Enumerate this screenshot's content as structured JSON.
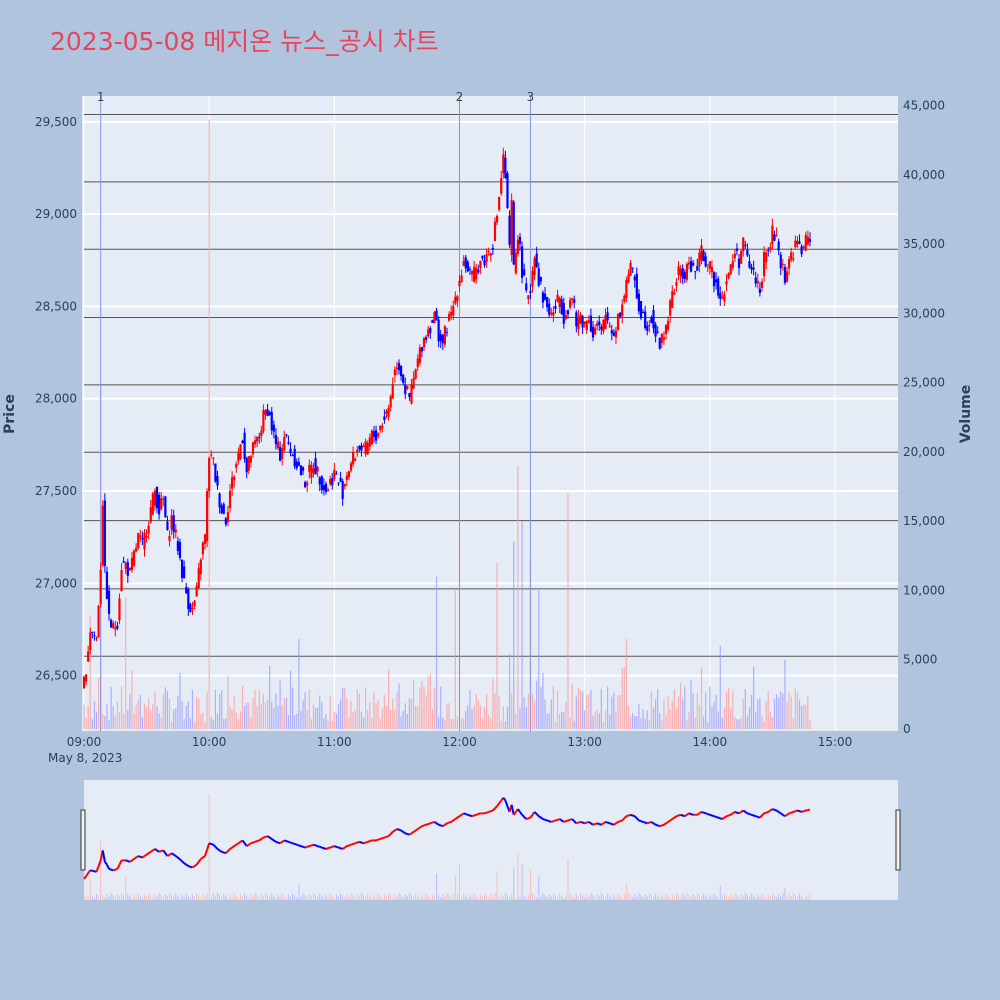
{
  "title": "2023-05-08 메지온 뉴스_공시 차트",
  "colors": {
    "background": "#b0c4de",
    "plot_bg": "#e5ecf6",
    "up": "#ff0000",
    "down": "#0000ff",
    "marker_line": "#8294e0",
    "hline": "#555555"
  },
  "chart_data": {
    "type": "candlestick",
    "date_label": "May 8, 2023",
    "ylabel": "Price",
    "y2label": "Volume",
    "ylim": [
      26200,
      29640
    ],
    "y2lim": [
      0,
      45700
    ],
    "xlim": [
      "09:00",
      "15:30"
    ],
    "y_ticks": [
      "26,500",
      "27,000",
      "27,500",
      "28,000",
      "28,500",
      "29,000",
      "29,500"
    ],
    "y_tick_values": [
      26500,
      27000,
      27500,
      28000,
      28500,
      29000,
      29500
    ],
    "y2_ticks": [
      "0",
      "5,000",
      "10,000",
      "15,000",
      "20,000",
      "25,000",
      "30,000",
      "35,000",
      "40,000",
      "45,000"
    ],
    "y2_tick_values": [
      0,
      5000,
      10000,
      15000,
      20000,
      25000,
      30000,
      35000,
      40000,
      45000
    ],
    "x_ticks": [
      "09:00",
      "10:00",
      "11:00",
      "12:00",
      "13:00",
      "14:00",
      "15:00"
    ],
    "x_tick_minutes": [
      0,
      60,
      120,
      180,
      240,
      300,
      360
    ],
    "event_markers": [
      {
        "label": "1",
        "minute": 8
      },
      {
        "label": "2",
        "minute": 180
      },
      {
        "label": "3",
        "minute": 214
      }
    ],
    "horizontal_levels": [
      29540,
      29175,
      28810,
      28440,
      28075,
      27710,
      27340,
      26970,
      26605
    ],
    "price_path": [
      [
        0,
        26450
      ],
      [
        3,
        26750
      ],
      [
        6,
        26700
      ],
      [
        8,
        27100
      ],
      [
        9,
        27450
      ],
      [
        10,
        27050
      ],
      [
        11,
        26950
      ],
      [
        12,
        26800
      ],
      [
        14,
        26750
      ],
      [
        16,
        26800
      ],
      [
        18,
        27100
      ],
      [
        20,
        27100
      ],
      [
        22,
        27050
      ],
      [
        24,
        27150
      ],
      [
        26,
        27250
      ],
      [
        28,
        27200
      ],
      [
        30,
        27300
      ],
      [
        32,
        27400
      ],
      [
        34,
        27500
      ],
      [
        36,
        27400
      ],
      [
        38,
        27450
      ],
      [
        40,
        27250
      ],
      [
        42,
        27350
      ],
      [
        45,
        27200
      ],
      [
        48,
        27000
      ],
      [
        50,
        26900
      ],
      [
        52,
        26850
      ],
      [
        54,
        26950
      ],
      [
        56,
        27150
      ],
      [
        58,
        27250
      ],
      [
        60,
        27700
      ],
      [
        62,
        27650
      ],
      [
        64,
        27500
      ],
      [
        66,
        27400
      ],
      [
        68,
        27350
      ],
      [
        70,
        27500
      ],
      [
        72,
        27600
      ],
      [
        74,
        27700
      ],
      [
        76,
        27800
      ],
      [
        78,
        27600
      ],
      [
        80,
        27700
      ],
      [
        82,
        27750
      ],
      [
        84,
        27800
      ],
      [
        86,
        27900
      ],
      [
        88,
        27950
      ],
      [
        90,
        27850
      ],
      [
        92,
        27750
      ],
      [
        94,
        27700
      ],
      [
        96,
        27800
      ],
      [
        98,
        27750
      ],
      [
        100,
        27700
      ],
      [
        102,
        27650
      ],
      [
        104,
        27600
      ],
      [
        106,
        27550
      ],
      [
        108,
        27600
      ],
      [
        110,
        27650
      ],
      [
        112,
        27600
      ],
      [
        114,
        27550
      ],
      [
        116,
        27500
      ],
      [
        118,
        27550
      ],
      [
        120,
        27600
      ],
      [
        122,
        27550
      ],
      [
        124,
        27500
      ],
      [
        126,
        27600
      ],
      [
        128,
        27650
      ],
      [
        130,
        27700
      ],
      [
        132,
        27750
      ],
      [
        134,
        27700
      ],
      [
        136,
        27750
      ],
      [
        138,
        27800
      ],
      [
        140,
        27800
      ],
      [
        142,
        27850
      ],
      [
        144,
        27900
      ],
      [
        146,
        27950
      ],
      [
        148,
        28100
      ],
      [
        150,
        28200
      ],
      [
        152,
        28150
      ],
      [
        154,
        28050
      ],
      [
        156,
        28000
      ],
      [
        158,
        28100
      ],
      [
        160,
        28200
      ],
      [
        162,
        28300
      ],
      [
        164,
        28350
      ],
      [
        166,
        28400
      ],
      [
        168,
        28450
      ],
      [
        170,
        28350
      ],
      [
        172,
        28300
      ],
      [
        174,
        28400
      ],
      [
        176,
        28450
      ],
      [
        178,
        28550
      ],
      [
        180,
        28650
      ],
      [
        182,
        28750
      ],
      [
        184,
        28700
      ],
      [
        186,
        28650
      ],
      [
        188,
        28700
      ],
      [
        190,
        28750
      ],
      [
        192,
        28750
      ],
      [
        194,
        28800
      ],
      [
        196,
        28850
      ],
      [
        198,
        29000
      ],
      [
        200,
        29200
      ],
      [
        201,
        29300
      ],
      [
        202,
        29200
      ],
      [
        204,
        28800
      ],
      [
        205,
        29050
      ],
      [
        206,
        28700
      ],
      [
        208,
        28900
      ],
      [
        210,
        28700
      ],
      [
        212,
        28550
      ],
      [
        214,
        28600
      ],
      [
        216,
        28800
      ],
      [
        218,
        28650
      ],
      [
        220,
        28550
      ],
      [
        222,
        28500
      ],
      [
        224,
        28450
      ],
      [
        226,
        28500
      ],
      [
        228,
        28550
      ],
      [
        230,
        28450
      ],
      [
        232,
        28500
      ],
      [
        234,
        28550
      ],
      [
        236,
        28400
      ],
      [
        238,
        28450
      ],
      [
        240,
        28400
      ],
      [
        242,
        28450
      ],
      [
        244,
        28350
      ],
      [
        246,
        28400
      ],
      [
        248,
        28350
      ],
      [
        250,
        28450
      ],
      [
        252,
        28400
      ],
      [
        254,
        28350
      ],
      [
        256,
        28450
      ],
      [
        258,
        28500
      ],
      [
        260,
        28650
      ],
      [
        262,
        28700
      ],
      [
        264,
        28650
      ],
      [
        266,
        28500
      ],
      [
        268,
        28450
      ],
      [
        270,
        28400
      ],
      [
        272,
        28450
      ],
      [
        274,
        28350
      ],
      [
        276,
        28300
      ],
      [
        278,
        28350
      ],
      [
        280,
        28450
      ],
      [
        282,
        28550
      ],
      [
        284,
        28650
      ],
      [
        286,
        28700
      ],
      [
        288,
        28650
      ],
      [
        290,
        28750
      ],
      [
        292,
        28700
      ],
      [
        294,
        28700
      ],
      [
        296,
        28800
      ],
      [
        298,
        28750
      ],
      [
        300,
        28700
      ],
      [
        302,
        28650
      ],
      [
        304,
        28600
      ],
      [
        306,
        28550
      ],
      [
        308,
        28650
      ],
      [
        310,
        28700
      ],
      [
        312,
        28800
      ],
      [
        314,
        28750
      ],
      [
        316,
        28850
      ],
      [
        318,
        28750
      ],
      [
        320,
        28700
      ],
      [
        322,
        28650
      ],
      [
        324,
        28600
      ],
      [
        326,
        28750
      ],
      [
        328,
        28800
      ],
      [
        330,
        28900
      ],
      [
        332,
        28850
      ],
      [
        334,
        28750
      ],
      [
        336,
        28650
      ],
      [
        338,
        28750
      ],
      [
        340,
        28800
      ],
      [
        342,
        28850
      ],
      [
        344,
        28800
      ],
      [
        346,
        28850
      ],
      [
        348,
        28880
      ]
    ],
    "volume_spikes": [
      {
        "minute": 3,
        "volume": 8200
      },
      {
        "minute": 8,
        "volume": 24500
      },
      {
        "minute": 20,
        "volume": 9500
      },
      {
        "minute": 60,
        "volume": 44000
      },
      {
        "minute": 103,
        "volume": 6500
      },
      {
        "minute": 169,
        "volume": 11000
      },
      {
        "minute": 178,
        "volume": 10000
      },
      {
        "minute": 180,
        "volume": 14500
      },
      {
        "minute": 198,
        "volume": 12000
      },
      {
        "minute": 206,
        "volume": 13500
      },
      {
        "minute": 208,
        "volume": 19000
      },
      {
        "minute": 210,
        "volume": 15000
      },
      {
        "minute": 214,
        "volume": 12500
      },
      {
        "minute": 218,
        "volume": 10000
      },
      {
        "minute": 232,
        "volume": 17000
      },
      {
        "minute": 260,
        "volume": 6500
      },
      {
        "minute": 305,
        "volume": 6000
      },
      {
        "minute": 336,
        "volume": 5000
      }
    ]
  }
}
